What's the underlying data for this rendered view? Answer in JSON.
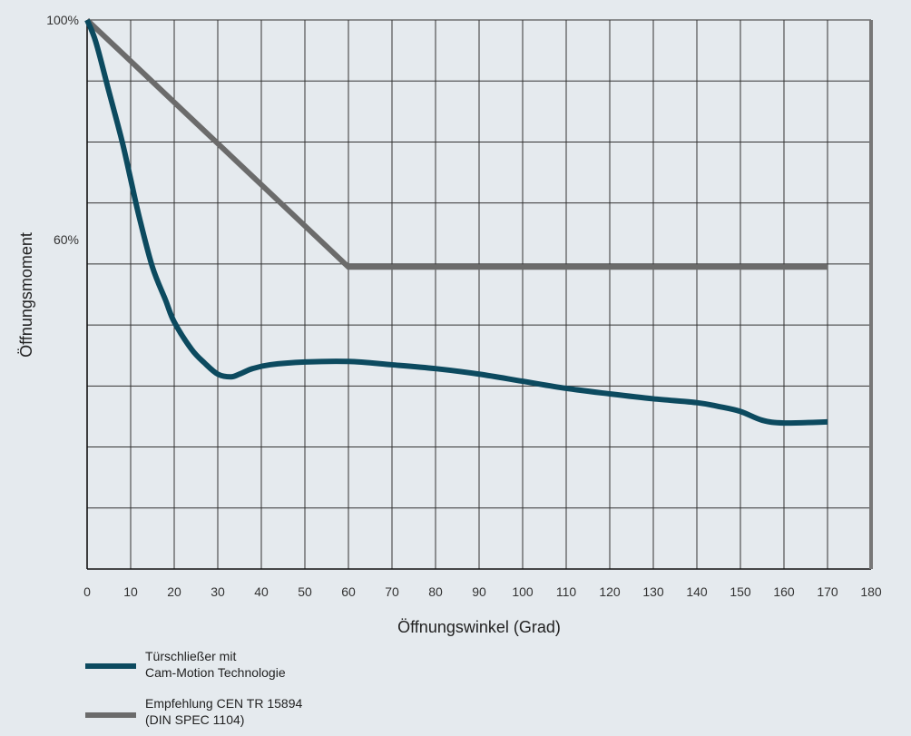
{
  "chart_data": {
    "type": "line",
    "xlabel": "Öffnungswinkel (Grad)",
    "ylabel": "Öffnungsmoment",
    "xlim": [
      0,
      180
    ],
    "ylim": [
      0,
      100
    ],
    "x_ticks": [
      "0",
      "10",
      "20",
      "30",
      "40",
      "50",
      "60",
      "70",
      "80",
      "90",
      "100",
      "110",
      "120",
      "130",
      "140",
      "150",
      "160",
      "170",
      "180"
    ],
    "y_tick_labels": [
      {
        "value": 100,
        "label": "100%"
      },
      {
        "value": 60,
        "label": "60%"
      }
    ],
    "grid": true,
    "legend_position": "bottom-left",
    "series": [
      {
        "name": "Türschließer mit Cam-Motion Technologie",
        "color": "#0c4a5f",
        "x": [
          0,
          2,
          5,
          8,
          10,
          12,
          15,
          18,
          20,
          24,
          27,
          30,
          33,
          35,
          38,
          42,
          50,
          60,
          70,
          80,
          90,
          100,
          110,
          120,
          130,
          140,
          145,
          150,
          155,
          160,
          170
        ],
        "y": [
          100,
          96,
          87,
          78,
          71,
          64,
          55,
          49,
          45,
          40,
          37.5,
          35.5,
          35,
          35.5,
          36.5,
          37.2,
          37.7,
          37.8,
          37.2,
          36.5,
          35.5,
          34.2,
          32.9,
          31.9,
          31,
          30.3,
          29.6,
          28.7,
          27.1,
          26.6,
          26.8
        ]
      },
      {
        "name": "Empfehlung CEN TR 15894 (DIN SPEC 1104)",
        "color": "#6b6b6b",
        "x": [
          0,
          60,
          170
        ],
        "y": [
          100,
          55,
          55
        ]
      }
    ]
  },
  "legend": {
    "item1_line1": "Türschließer mit",
    "item1_line2": "Cam-Motion Technologie",
    "item2_line1": "Empfehlung CEN TR 15894",
    "item2_line2": "(DIN SPEC 1104)"
  }
}
